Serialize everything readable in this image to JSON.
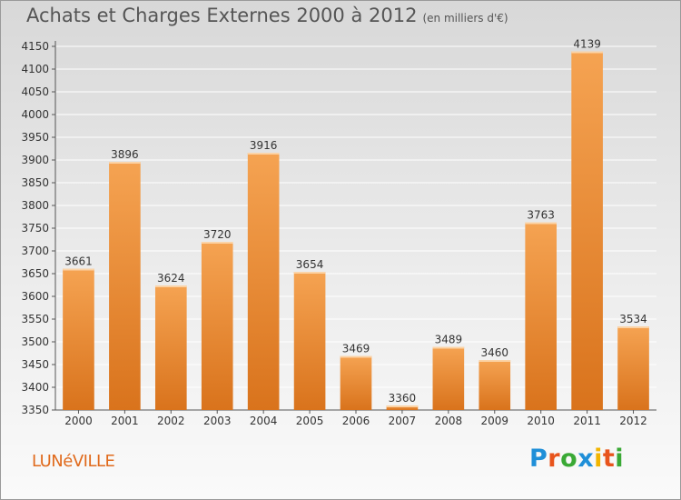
{
  "chart_data": {
    "type": "bar",
    "title": "Achats et Charges Externes 2000 à 2012",
    "subtitle": "(en milliers d'€)",
    "categories": [
      "2000",
      "2001",
      "2002",
      "2003",
      "2004",
      "2005",
      "2006",
      "2007",
      "2008",
      "2009",
      "2010",
      "2011",
      "2012"
    ],
    "values": [
      3661,
      3896,
      3624,
      3720,
      3916,
      3654,
      3469,
      3360,
      3489,
      3460,
      3763,
      4139,
      3534
    ],
    "ylim": [
      3350,
      4150
    ],
    "yticks": [
      3350,
      3400,
      3450,
      3500,
      3550,
      3600,
      3650,
      3700,
      3750,
      3800,
      3850,
      3900,
      3950,
      4000,
      4050,
      4100,
      4150
    ],
    "grid": true,
    "bar_color_top": "#f5a352",
    "bar_color_bottom": "#d9731c",
    "grid_color": "#ffffff"
  },
  "footer": {
    "city": "LUNéVILLE",
    "logo": "Proxiti",
    "logo_colors": [
      "#1f8fd8",
      "#e8541c",
      "#3aa935",
      "#1f8fd8",
      "#f2b500",
      "#e8541c",
      "#3aa935"
    ]
  }
}
